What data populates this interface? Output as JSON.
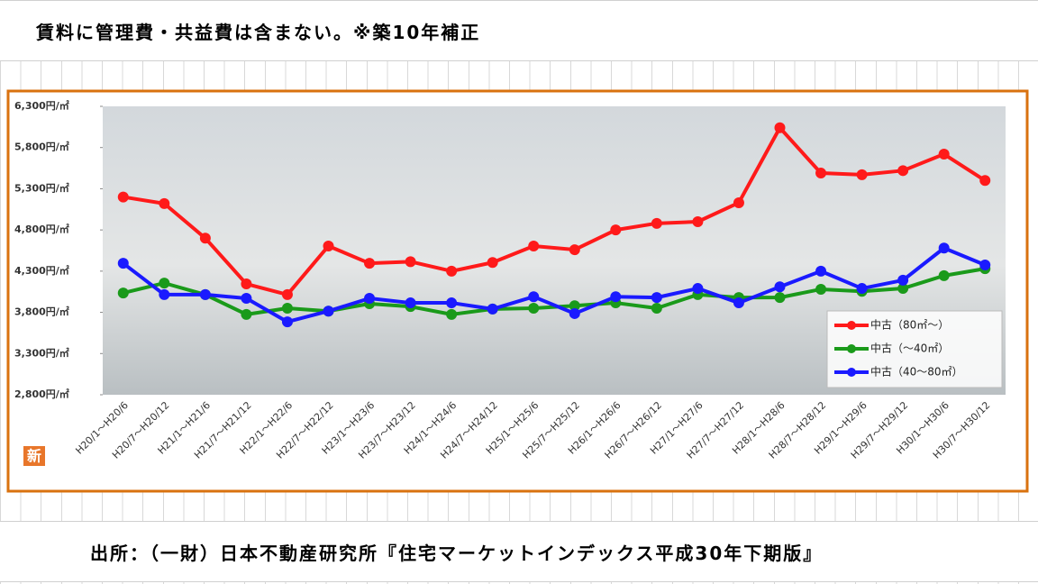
{
  "header_note": "賃料に管理費・共益費は含まない。※築10年補正",
  "source": "出所：（一財）日本不動産研究所『住宅マーケットインデックス平成30年下期版』",
  "logo": "新",
  "chart_data": {
    "type": "line",
    "categories": [
      "H20/1～H20/6",
      "H20/7～H20/12",
      "H21/1～H21/6",
      "H21/7～H21/12",
      "H22/1～H22/6",
      "H22/7～H22/12",
      "H23/1～H23/6",
      "H23/7～H23/12",
      "H24/1～H24/6",
      "H24/7～H24/12",
      "H25/1～H25/6",
      "H25/7～H25/12",
      "H26/1～H26/6",
      "H26/7～H26/12",
      "H27/1～H27/6",
      "H27/7～H27/12",
      "H28/1～H28/6",
      "H28/7～H28/12",
      "H29/1～H29/6",
      "H29/7～H29/12",
      "H30/1～H30/6",
      "H30/7～H30/12"
    ],
    "series": [
      {
        "name": "中古（80㎡～）",
        "color": "#ff1a1a",
        "values": [
          5200,
          5120,
          4700,
          4145,
          4015,
          4605,
          4395,
          4415,
          4300,
          4405,
          4605,
          4560,
          4800,
          4880,
          4900,
          5130,
          6040,
          5490,
          5470,
          5520,
          5720,
          5400
        ]
      },
      {
        "name": "中古（～40㎡）",
        "color": "#1a9a1a",
        "values": [
          4035,
          4155,
          4015,
          3775,
          3850,
          3815,
          3905,
          3870,
          3775,
          3840,
          3850,
          3880,
          3915,
          3850,
          4015,
          3980,
          3980,
          4080,
          4055,
          4090,
          4245,
          4330
        ]
      },
      {
        "name": "中古（40～80㎡）",
        "color": "#1a1aff",
        "values": [
          4395,
          4015,
          4015,
          3970,
          3685,
          3815,
          3970,
          3915,
          3915,
          3840,
          3990,
          3785,
          3990,
          3980,
          4090,
          3915,
          4110,
          4300,
          4090,
          4190,
          4580,
          4375
        ]
      }
    ],
    "ylim": [
      2800,
      6300
    ],
    "yticks": [
      {
        "value": 2800,
        "label": "2,800円/㎡"
      },
      {
        "value": 3300,
        "label": "3,300円/㎡"
      },
      {
        "value": 3800,
        "label": "3,800円/㎡"
      },
      {
        "value": 4300,
        "label": "4,300円/㎡"
      },
      {
        "value": 4800,
        "label": "4,800円/㎡"
      },
      {
        "value": 5300,
        "label": "5,300円/㎡"
      },
      {
        "value": 5800,
        "label": "5,800円/㎡"
      },
      {
        "value": 6300,
        "label": "6,300円/㎡"
      }
    ],
    "legend": "lower right"
  }
}
